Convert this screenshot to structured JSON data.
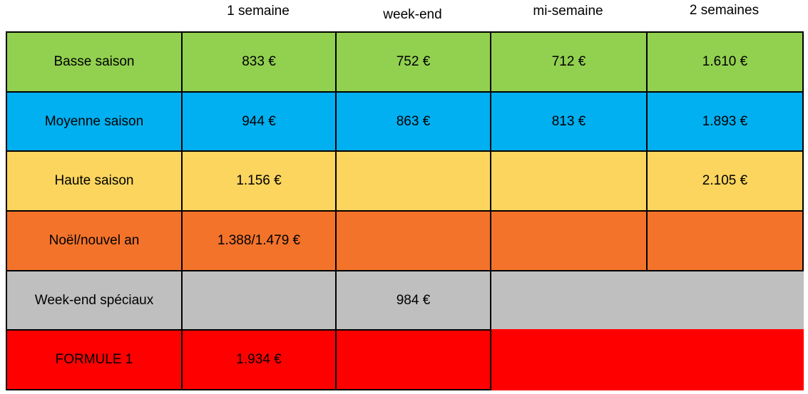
{
  "colors": {
    "green": "#92D050",
    "blue": "#00B0F0",
    "yellow": "#FBD55E",
    "orange": "#F3732B",
    "gray": "#BFBFBF",
    "red": "#FF0000",
    "border": "#000000",
    "text": "#000000",
    "background": "#FFFFFF"
  },
  "chart_data": {
    "type": "table",
    "title": "",
    "columns": [
      "",
      "1 semaine",
      "week-end",
      "mi-semaine",
      "2 semaines"
    ],
    "rows": [
      [
        "Basse saison",
        "833 €",
        "752 €",
        "712 €",
        "1.610 €"
      ],
      [
        "Moyenne saison",
        "944 €",
        "863 €",
        "813 €",
        "1.893 €"
      ],
      [
        "Haute saison",
        "1.156 €",
        "",
        "",
        "2.105 €"
      ],
      [
        "Noël/nouvel an",
        "1.388/1.479 €",
        "",
        "",
        ""
      ],
      [
        "Week-end spéciaux",
        "",
        "984 €",
        null,
        null
      ],
      [
        "FORMULE 1",
        "1.934 €",
        "",
        null,
        null
      ]
    ],
    "row_color_names": [
      "green",
      "blue",
      "yellow",
      "orange",
      "gray",
      "red"
    ],
    "row_colors_hex": [
      "#92D050",
      "#00B0F0",
      "#FBD55E",
      "#F3732B",
      "#BFBFBF",
      "#FF0000"
    ],
    "notes": "Rows 'Week-end spéciaux' and 'FORMULE 1' only span the first three columns; currency values use dot as thousands separator."
  }
}
